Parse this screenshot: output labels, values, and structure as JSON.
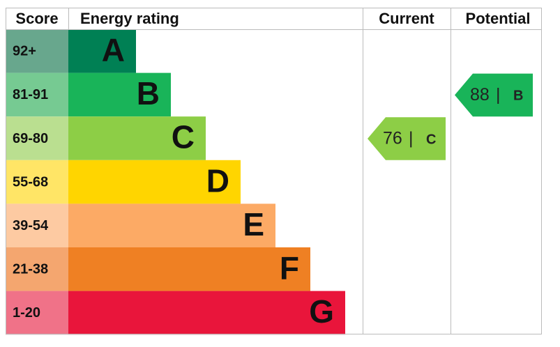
{
  "chart_data": {
    "type": "epc",
    "headers": {
      "score": "Score",
      "rating": "Energy rating",
      "current": "Current",
      "potential": "Potential"
    },
    "bands": [
      {
        "score": "92+",
        "letter": "A",
        "color": "#008054",
        "score_color": "#68a78d"
      },
      {
        "score": "81-91",
        "letter": "B",
        "color": "#19b459",
        "score_color": "#76ca92"
      },
      {
        "score": "69-80",
        "letter": "C",
        "color": "#8dce46",
        "score_color": "#badf90"
      },
      {
        "score": "55-68",
        "letter": "D",
        "color": "#ffd500",
        "score_color": "#ffe566"
      },
      {
        "score": "39-54",
        "letter": "E",
        "color": "#fcaa65",
        "score_color": "#fdcaa2"
      },
      {
        "score": "21-38",
        "letter": "F",
        "color": "#ef8023",
        "score_color": "#f4a66f"
      },
      {
        "score": "1-20",
        "letter": "G",
        "color": "#e9153b",
        "score_color": "#f07288"
      }
    ],
    "current": {
      "value": 76,
      "separator": "|",
      "letter": "C"
    },
    "potential": {
      "value": 88,
      "separator": "|",
      "letter": "B"
    }
  }
}
